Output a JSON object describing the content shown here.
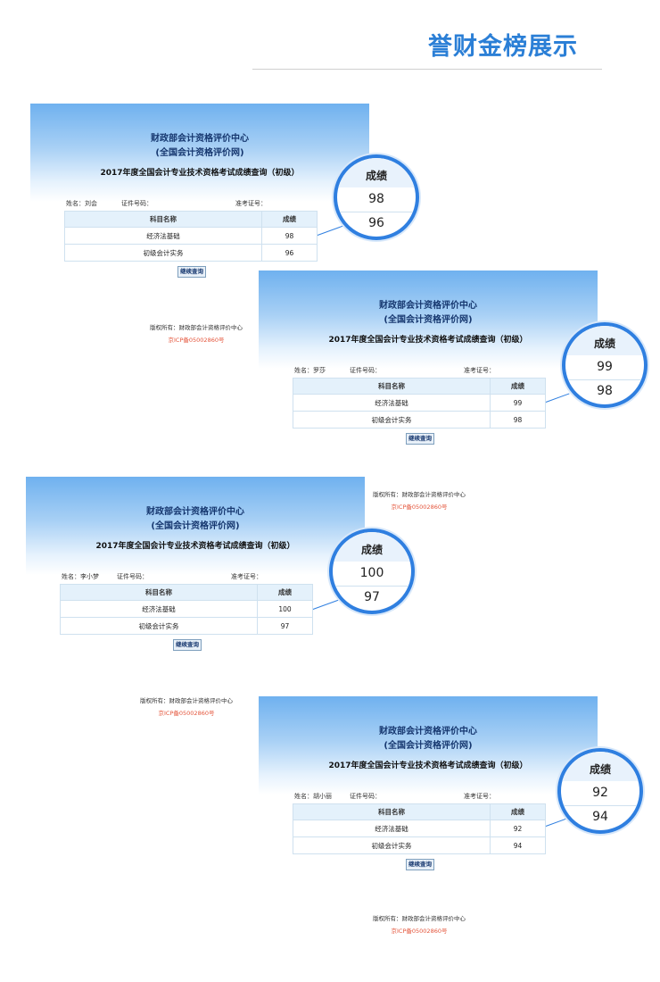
{
  "page": {
    "title": "誉财金榜展示"
  },
  "shared": {
    "org_line1": "财政部会计资格评价中心",
    "org_line2": "(全国会计资格评价网)",
    "exam_title": "2017年度全国会计专业技术资格考试成绩查询（初级）",
    "id_label": "证件号码：",
    "ticket_label": "准考证号：",
    "col_subject": "科目名称",
    "col_score": "成绩",
    "subject_1": "经济法基础",
    "subject_2": "初级会计实务",
    "continue_button": "继续查询",
    "copyright": "版权所有：财政部会计资格评价中心",
    "icp": "京ICP备05002860号",
    "lens_header": "成绩"
  },
  "cards": [
    {
      "name": "姓名：刘会",
      "score_1": "98",
      "score_2": "96"
    },
    {
      "name": "姓名：罗莎",
      "score_1": "99",
      "score_2": "98"
    },
    {
      "name": "姓名：李小梦",
      "score_1": "100",
      "score_2": "97"
    },
    {
      "name": "姓名：胡小丽",
      "score_1": "92",
      "score_2": "94"
    }
  ]
}
